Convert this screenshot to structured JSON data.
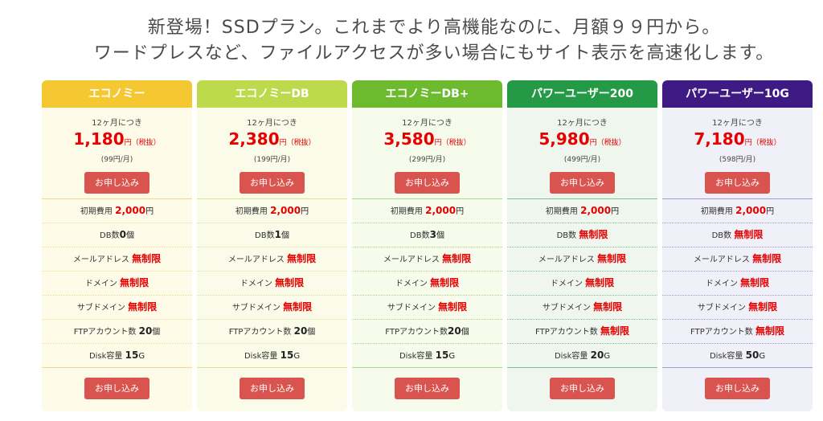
{
  "headline": {
    "line1": "新登場！SSDプラン。これまでより高機能なのに、月額９９円から。",
    "line2": "ワードプレスなど、ファイルアクセスが多い場合にもサイト表示を高速化します。"
  },
  "apply_label": "お申し込み",
  "plans": [
    {
      "name": "エコノミー",
      "term": "12ヶ月につき",
      "price": "1,180",
      "unit": "円（税抜）",
      "monthly": "(99円/月)",
      "features": [
        {
          "label": "初期費用",
          "value": "2,000",
          "unit": "円"
        },
        {
          "label": "DB数",
          "value": "0",
          "unit": "個"
        },
        {
          "label": "メールアドレス",
          "value": "無制限",
          "unit": ""
        },
        {
          "label": "ドメイン",
          "value": "無制限",
          "unit": ""
        },
        {
          "label": "サブドメイン",
          "value": "無制限",
          "unit": ""
        },
        {
          "label": "FTPアカウント数",
          "value": "20",
          "unit": "個"
        },
        {
          "label": "Disk容量",
          "value": "15",
          "unit": "G"
        }
      ]
    },
    {
      "name": "エコノミーDB",
      "term": "12ヶ月につき",
      "price": "2,380",
      "unit": "円（税抜）",
      "monthly": "(199円/月)",
      "features": [
        {
          "label": "初期費用",
          "value": "2,000",
          "unit": "円"
        },
        {
          "label": "DB数",
          "value": "1",
          "unit": "個"
        },
        {
          "label": "メールアドレス",
          "value": "無制限",
          "unit": ""
        },
        {
          "label": "ドメイン",
          "value": "無制限",
          "unit": ""
        },
        {
          "label": "サブドメイン",
          "value": "無制限",
          "unit": ""
        },
        {
          "label": "FTPアカウント数",
          "value": "20",
          "unit": "個"
        },
        {
          "label": "Disk容量",
          "value": "15",
          "unit": "G"
        }
      ]
    },
    {
      "name": "エコノミーDB+",
      "term": "12ヶ月につき",
      "price": "3,580",
      "unit": "円（税抜）",
      "monthly": "(299円/月)",
      "features": [
        {
          "label": "初期費用",
          "value": "2,000",
          "unit": "円"
        },
        {
          "label": "DB数",
          "value": "3",
          "unit": "個"
        },
        {
          "label": "メールアドレス",
          "value": "無制限",
          "unit": ""
        },
        {
          "label": "ドメイン",
          "value": "無制限",
          "unit": ""
        },
        {
          "label": "サブドメイン",
          "value": "無制限",
          "unit": ""
        },
        {
          "label": "FTPアカウント数",
          "value": "20",
          "unit": "個"
        },
        {
          "label": "Disk容量",
          "value": "15",
          "unit": "G"
        }
      ]
    },
    {
      "name": "パワーユーザー200",
      "term": "12ヶ月につき",
      "price": "5,980",
      "unit": "円（税抜）",
      "monthly": "(499円/月)",
      "features": [
        {
          "label": "初期費用",
          "value": "2,000",
          "unit": "円"
        },
        {
          "label": "DB数",
          "value": "無制限",
          "unit": ""
        },
        {
          "label": "メールアドレス",
          "value": "無制限",
          "unit": ""
        },
        {
          "label": "ドメイン",
          "value": "無制限",
          "unit": ""
        },
        {
          "label": "サブドメイン",
          "value": "無制限",
          "unit": ""
        },
        {
          "label": "FTPアカウント数",
          "value": "無制限",
          "unit": ""
        },
        {
          "label": "Disk容量",
          "value": "20",
          "unit": "G"
        }
      ]
    },
    {
      "name": "パワーユーザー10G",
      "term": "12ヶ月につき",
      "price": "7,180",
      "unit": "円（税抜）",
      "monthly": "(598円/月)",
      "features": [
        {
          "label": "初期費用",
          "value": "2,000",
          "unit": "円"
        },
        {
          "label": "DB数",
          "value": "無制限",
          "unit": ""
        },
        {
          "label": "メールアドレス",
          "value": "無制限",
          "unit": ""
        },
        {
          "label": "ドメイン",
          "value": "無制限",
          "unit": ""
        },
        {
          "label": "サブドメイン",
          "value": "無制限",
          "unit": ""
        },
        {
          "label": "FTPアカウント数",
          "value": "無制限",
          "unit": ""
        },
        {
          "label": "Disk容量",
          "value": "50",
          "unit": "G"
        }
      ]
    }
  ],
  "colors": {
    "price_red": "#e60000",
    "button_red": "#d9534f",
    "economy_head": "#f5c730",
    "economy_db_head": "#bdd94c",
    "economy_dbplus_head": "#6dba2e",
    "power200_head": "#249a47",
    "power10g_head": "#3e1a84"
  }
}
